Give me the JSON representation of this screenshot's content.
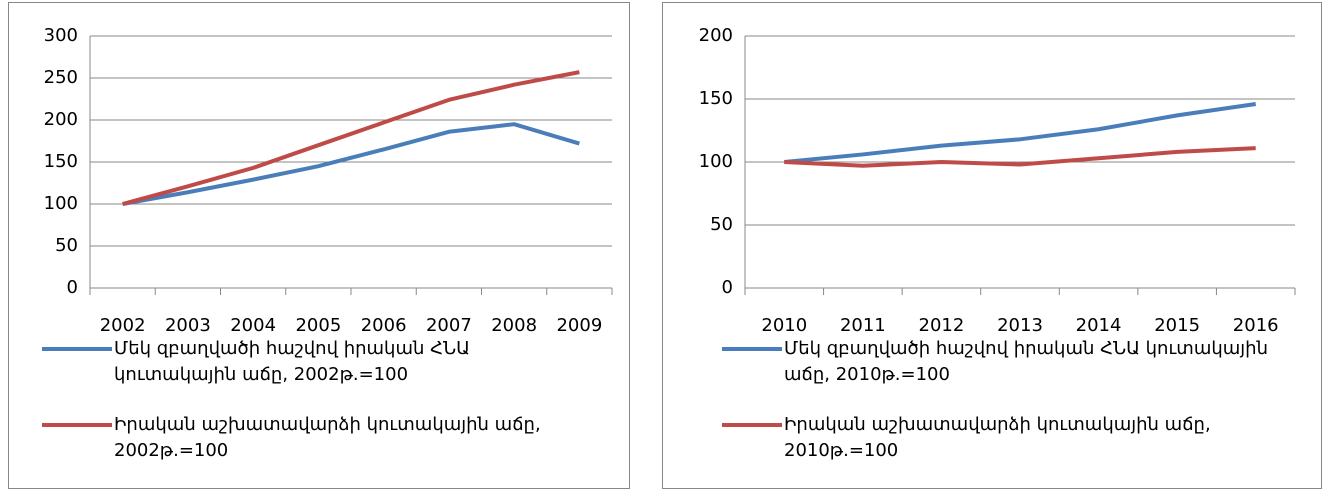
{
  "chart_data": [
    {
      "type": "line",
      "categories": [
        "2002",
        "2003",
        "2004",
        "2005",
        "2006",
        "2007",
        "2008",
        "2009"
      ],
      "series": [
        {
          "name": "Մեկ զբաղվածի հաշվով իրական ՀՆԱ կուտակային աճը,  2002թ.=100",
          "color": "#4a7ebb",
          "values": [
            100,
            114,
            129,
            145,
            165,
            186,
            195,
            172
          ]
        },
        {
          "name": "Իրական աշխատավարձի կուտակային աճը, 2002թ.=100",
          "color": "#be4b48",
          "values": [
            100,
            121,
            143,
            170,
            197,
            224,
            242,
            257
          ]
        }
      ],
      "ylim": [
        0,
        300
      ],
      "yticks": [
        0,
        50,
        100,
        150,
        200,
        250,
        300
      ],
      "grid": true,
      "legend": "bottom"
    },
    {
      "type": "line",
      "categories": [
        "2010",
        "2011",
        "2012",
        "2013",
        "2014",
        "2015",
        "2016"
      ],
      "series": [
        {
          "name": "Մեկ զբաղվածի հաշվով իրական ՀՆԱ կուտակային աճը, 2010թ.=100",
          "color": "#4a7ebb",
          "values": [
            100,
            106,
            113,
            118,
            126,
            137,
            146
          ]
        },
        {
          "name": "Իրական աշխատավարձի կուտակային աճը, 2010թ.=100",
          "color": "#be4b48",
          "values": [
            100,
            97,
            100,
            98,
            103,
            108,
            111
          ]
        }
      ],
      "ylim": [
        0,
        200
      ],
      "yticks": [
        0,
        50,
        100,
        150,
        200
      ],
      "grid": true,
      "legend": "bottom"
    }
  ]
}
